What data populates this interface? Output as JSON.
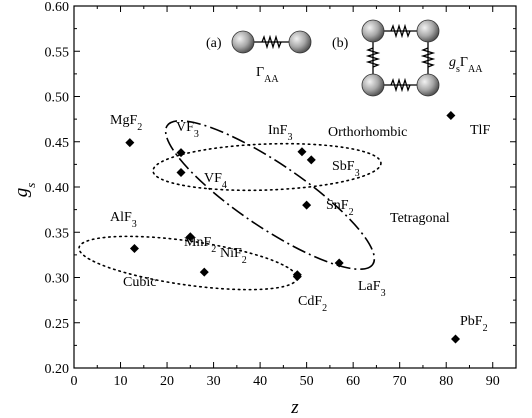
{
  "chart_data": {
    "type": "scatter",
    "xlabel": "z",
    "ylabel": "g",
    "ylabel_sub": "s",
    "xlim": [
      0,
      95
    ],
    "ylim": [
      0.2,
      0.6
    ],
    "xticks": [
      0,
      10,
      20,
      30,
      40,
      50,
      60,
      70,
      80,
      90
    ],
    "xtick_labels": [
      "0",
      "10",
      "20",
      "30",
      "40",
      "50",
      "60",
      "70",
      "80",
      "90"
    ],
    "yticks": [
      0.2,
      0.25,
      0.3,
      0.35,
      0.4,
      0.45,
      0.5,
      0.55,
      0.6
    ],
    "ytick_labels": [
      "0.20",
      "0.25",
      "0.30",
      "0.35",
      "0.40",
      "0.45",
      "0.50",
      "0.55",
      "0.60"
    ],
    "marker": "diamond",
    "marker_color": "#000000",
    "points": [
      {
        "x": 12,
        "y": 0.449,
        "name": "MgF",
        "sub": "2"
      },
      {
        "x": 23,
        "y": 0.438,
        "name": "VF",
        "sub": "3"
      },
      {
        "x": 23,
        "y": 0.416,
        "name": "VF",
        "sub": "4"
      },
      {
        "x": 49,
        "y": 0.439,
        "name": "InF",
        "sub": "3"
      },
      {
        "x": 51,
        "y": 0.43,
        "name": "SbF",
        "sub": "3"
      },
      {
        "x": 50,
        "y": 0.38,
        "name": "SnF",
        "sub": "2"
      },
      {
        "x": 81,
        "y": 0.479,
        "name": "TlF",
        "sub": ""
      },
      {
        "x": 13,
        "y": 0.332,
        "name": "AlF",
        "sub": "3"
      },
      {
        "x": 25,
        "y": 0.345,
        "name": "MnF",
        "sub": "2"
      },
      {
        "x": 28,
        "y": 0.306,
        "name": "NiF",
        "sub": "2"
      },
      {
        "x": 48,
        "y": 0.301,
        "name": "CdF",
        "sub": "2"
      },
      {
        "x": 48,
        "y": 0.303,
        "name": "",
        "sub": ""
      },
      {
        "x": 57,
        "y": 0.316,
        "name": "LaF",
        "sub": "3"
      },
      {
        "x": 82,
        "y": 0.232,
        "name": "PbF",
        "sub": "2"
      }
    ],
    "regions": [
      {
        "label": "Orthorhombic",
        "style": "dotted"
      },
      {
        "label": "Tetragonal",
        "style": "dash-dot"
      },
      {
        "label": "Cubic",
        "style": "dotted"
      }
    ],
    "insets": [
      {
        "tag": "(a)",
        "caption": "Γ",
        "caption_sub": "AA"
      },
      {
        "tag": "(b)",
        "caption": "g",
        "caption_sub": "s",
        "caption2": "Γ",
        "caption2_sub": "AA"
      }
    ]
  }
}
